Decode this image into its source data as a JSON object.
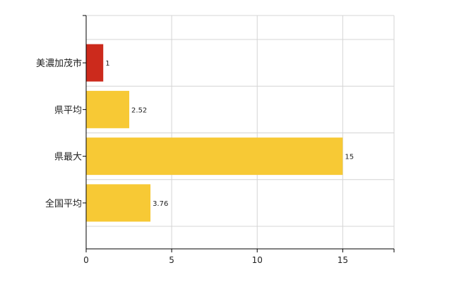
{
  "chart_data": {
    "type": "bar",
    "orientation": "horizontal",
    "categories": [
      "美濃加茂市",
      "県平均",
      "県最大",
      "全国平均"
    ],
    "values": [
      1,
      2.52,
      15,
      3.76
    ],
    "data_labels": [
      "1",
      "2.52",
      "15",
      "3.76"
    ],
    "bar_colors": [
      "#cc2a1c",
      "#f7c935",
      "#f7c935",
      "#f7c935"
    ],
    "xlim": [
      0,
      18
    ],
    "x_ticks": [
      0,
      5,
      10,
      15
    ],
    "x_tick_labels": [
      "0",
      "5",
      "10",
      "15"
    ],
    "grid": true,
    "legend": "none",
    "title": "",
    "xlabel": "",
    "ylabel": ""
  },
  "colors": {
    "highlight_bar": "#cc2a1c",
    "standard_bar": "#f7c935",
    "gridline": "#d4d4d4",
    "axis": "#000000"
  }
}
